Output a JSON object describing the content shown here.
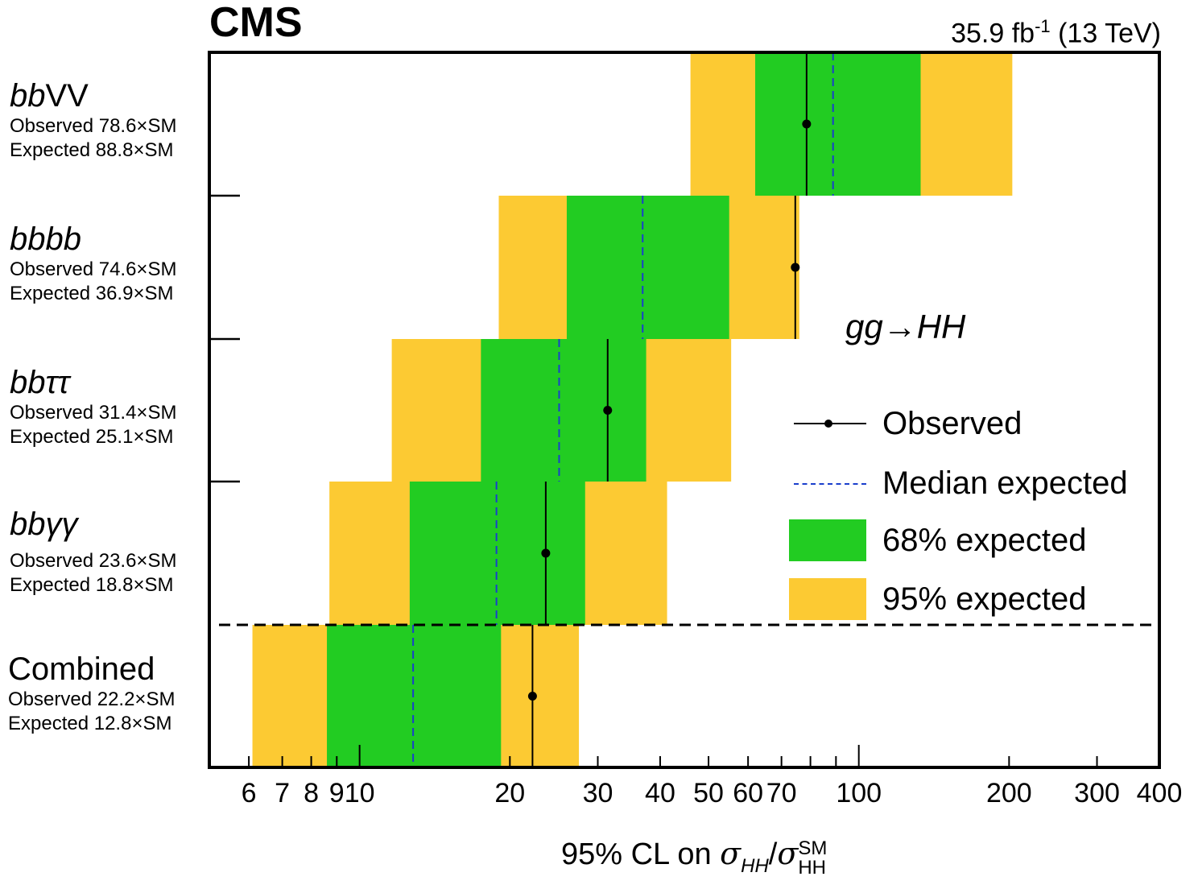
{
  "header": {
    "experiment": "CMS",
    "lumi_value": "35.9 fb",
    "lumi_exp": "-1",
    "energy": "(13 TeV)"
  },
  "process_label": "gg→HH",
  "colors": {
    "band68": "#22cc22",
    "band95": "#fcca33",
    "observed": "#000000",
    "median": "#1a3fcc"
  },
  "chart_data": {
    "type": "horizontal-band",
    "x_scale": "log",
    "xlim": [
      5,
      400
    ],
    "x_ticks": [
      6,
      7,
      8,
      9,
      10,
      20,
      30,
      40,
      50,
      60,
      70,
      100,
      200,
      300,
      400
    ],
    "x_tick_labels": [
      "6",
      "7",
      "8",
      "9",
      "10",
      "20",
      "30",
      "40",
      "50",
      "60",
      "70",
      "100",
      "200",
      "300",
      "400"
    ],
    "xlabel": "95% CL on σHH/σHH SM",
    "channels": [
      {
        "name": "bbVV",
        "observed_label": "Observed 78.6×SM",
        "expected_label": "Expected 88.8×SM",
        "observed": 78.6,
        "expected": 88.8,
        "band68": [
          62,
          133
        ],
        "band95": [
          46,
          203
        ]
      },
      {
        "name": "bbbb",
        "observed_label": "Observed 74.6×SM",
        "expected_label": "Expected 36.9×SM",
        "observed": 74.6,
        "expected": 36.9,
        "band68": [
          26,
          55
        ],
        "band95": [
          19,
          76
        ]
      },
      {
        "name": "bbττ",
        "observed_label": "Observed 31.4×SM",
        "expected_label": "Expected 25.1×SM",
        "observed": 31.4,
        "expected": 25.1,
        "band68": [
          17.5,
          37.5
        ],
        "band95": [
          11.6,
          55.5
        ]
      },
      {
        "name": "bbγγ",
        "observed_label": "Observed 23.6×SM",
        "expected_label": "Expected 18.8×SM",
        "observed": 23.6,
        "expected": 18.8,
        "band68": [
          12.6,
          28.3
        ],
        "band95": [
          8.7,
          41.3
        ]
      },
      {
        "name": "Combined",
        "observed_label": "Observed 22.2×SM",
        "expected_label": "Expected 12.8×SM",
        "observed": 22.2,
        "expected": 12.8,
        "band68": [
          8.6,
          19.2
        ],
        "band95": [
          6.1,
          27.5
        ]
      }
    ],
    "legend": {
      "placement": "right",
      "entries": [
        "Observed",
        "Median expected",
        "68% expected",
        "95% expected"
      ]
    }
  }
}
